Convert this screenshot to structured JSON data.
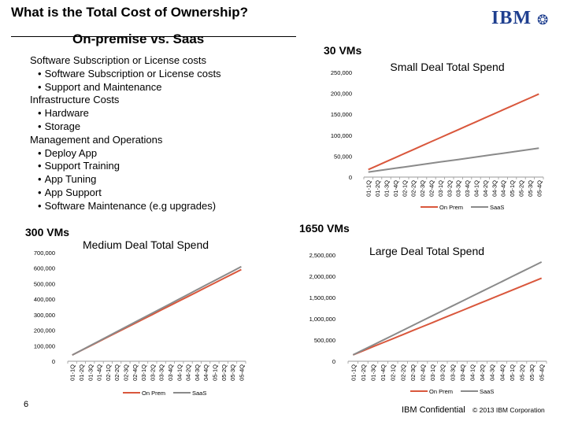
{
  "header": {
    "title": "What is the Total Cost of Ownership?",
    "subtitle": "On-premise vs. Saas",
    "logo_text": "IBM",
    "logo_icon": "smarter-planet-icon"
  },
  "cost_list": [
    {
      "type": "cat",
      "text": "Software Subscription or License costs"
    },
    {
      "type": "item",
      "text": "Software Subscription or License costs"
    },
    {
      "type": "item",
      "text": "Support and Maintenance"
    },
    {
      "type": "cat",
      "text": "Infrastructure Costs"
    },
    {
      "type": "item",
      "text": "Hardware"
    },
    {
      "type": "item",
      "text": "Storage"
    },
    {
      "type": "cat",
      "text": "Management and Operations"
    },
    {
      "type": "item",
      "text": "Deploy App"
    },
    {
      "type": "item",
      "text": "Support Training"
    },
    {
      "type": "item",
      "text": "App Tuning"
    },
    {
      "type": "item",
      "text": "App Support"
    },
    {
      "type": "item",
      "text": "Software Maintenance (e.g upgrades)"
    }
  ],
  "vm_labels": {
    "small": "30 VMs",
    "medium": "300 VMs",
    "large": "1650 VMs"
  },
  "colors": {
    "on_prem": "#d9573c",
    "saas": "#8a8a8a"
  },
  "chart_data": [
    {
      "type": "line",
      "title": "Small Deal Total Spend",
      "categories": [
        "01-1Q",
        "01-2Q",
        "01-3Q",
        "01-4Q",
        "02-1Q",
        "02-2Q",
        "02-3Q",
        "02-4Q",
        "03-1Q",
        "03-2Q",
        "03-3Q",
        "03-4Q",
        "04-1Q",
        "04-2Q",
        "04-3Q",
        "04-4Q",
        "05-1Q",
        "05-2Q",
        "05-3Q",
        "05-4Q"
      ],
      "ylim": [
        0,
        250000
      ],
      "yticks": [
        "0",
        "50,000",
        "100,000",
        "150,000",
        "200,000",
        "250,000"
      ],
      "series": [
        {
          "name": "On Prem",
          "values": [
            18000,
            27500,
            37000,
            46500,
            56000,
            65500,
            75000,
            84500,
            94000,
            103500,
            113000,
            122500,
            132000,
            141500,
            151000,
            160500,
            170000,
            179500,
            189000,
            198500
          ]
        },
        {
          "name": "SaaS",
          "values": [
            12000,
            15000,
            18000,
            21000,
            24000,
            27000,
            30000,
            33000,
            36000,
            39000,
            42000,
            45000,
            48000,
            51000,
            54000,
            57000,
            60000,
            63000,
            66000,
            69000
          ]
        }
      ],
      "legend_position": "bottom",
      "grid": false
    },
    {
      "type": "line",
      "title": "Medium Deal Total Spend",
      "categories": [
        "01-1Q",
        "01-2Q",
        "01-3Q",
        "01-4Q",
        "02-1Q",
        "02-2Q",
        "02-3Q",
        "02-4Q",
        "03-1Q",
        "03-2Q",
        "03-3Q",
        "03-4Q",
        "04-1Q",
        "04-2Q",
        "04-3Q",
        "04-4Q",
        "05-1Q",
        "05-2Q",
        "05-3Q",
        "05-4Q"
      ],
      "ylim": [
        0,
        700000
      ],
      "yticks": [
        "0",
        "100,000",
        "200,000",
        "300,000",
        "400,000",
        "500,000",
        "600,000",
        "700,000"
      ],
      "series": [
        {
          "name": "On Prem",
          "values": [
            40000,
            69000,
            98000,
            127000,
            156000,
            185000,
            214000,
            243000,
            272000,
            301000,
            330000,
            359000,
            388000,
            417000,
            446000,
            475000,
            504000,
            533000,
            562000,
            591000
          ]
        },
        {
          "name": "SaaS",
          "values": [
            40000,
            70000,
            100000,
            130000,
            160000,
            190000,
            220000,
            250000,
            280000,
            310000,
            340000,
            370000,
            400000,
            430000,
            460000,
            490000,
            520000,
            550000,
            580000,
            610000
          ]
        }
      ],
      "legend_position": "bottom",
      "grid": false
    },
    {
      "type": "line",
      "title": "Large Deal Total Spend",
      "categories": [
        "01-1Q",
        "01-2Q",
        "01-3Q",
        "01-4Q",
        "02-1Q",
        "02-2Q",
        "02-3Q",
        "02-4Q",
        "03-1Q",
        "03-2Q",
        "03-3Q",
        "03-4Q",
        "04-1Q",
        "04-2Q",
        "04-3Q",
        "04-4Q",
        "05-1Q",
        "05-2Q",
        "05-3Q",
        "05-4Q"
      ],
      "ylim": [
        0,
        2500000
      ],
      "yticks": [
        "0",
        "500,000",
        "1,000,000",
        "1,500,000",
        "2,000,000",
        "2,500,000"
      ],
      "series": [
        {
          "name": "On Prem",
          "values": [
            150000,
            245000,
            340000,
            435000,
            530000,
            625000,
            720000,
            815000,
            910000,
            1005000,
            1100000,
            1195000,
            1290000,
            1385000,
            1480000,
            1575000,
            1670000,
            1765000,
            1860000,
            1955000
          ]
        },
        {
          "name": "SaaS",
          "values": [
            150000,
            265000,
            380000,
            495000,
            610000,
            725000,
            840000,
            955000,
            1070000,
            1185000,
            1300000,
            1415000,
            1530000,
            1645000,
            1760000,
            1875000,
            1990000,
            2105000,
            2220000,
            2335000
          ]
        }
      ],
      "legend_position": "bottom",
      "grid": false
    }
  ],
  "footer": {
    "page_number": "6",
    "confidential": "IBM Confidential",
    "copyright": "© 2013 IBM Corporation"
  }
}
